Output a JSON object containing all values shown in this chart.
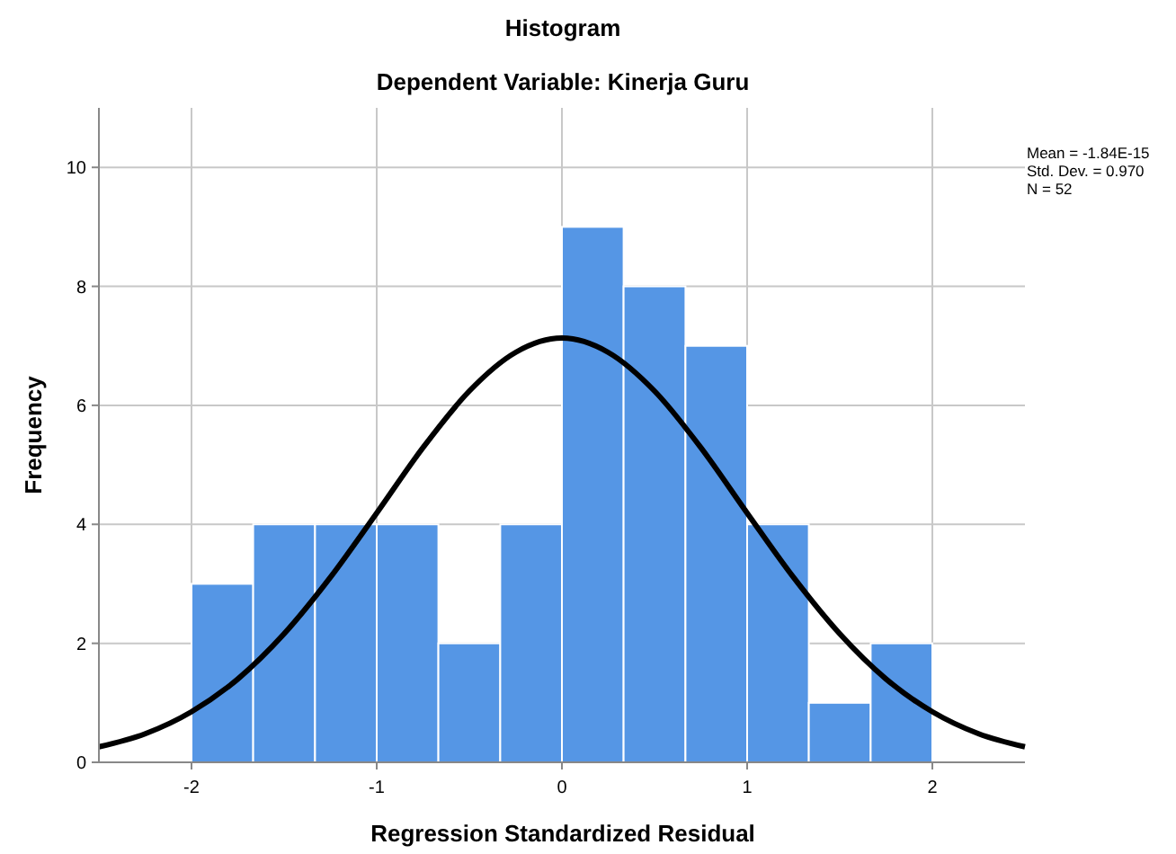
{
  "chart_data": {
    "type": "histogram",
    "title": "Histogram",
    "subtitle": "Dependent Variable: Kinerja Guru",
    "xlabel": "Regression Standardized Residual",
    "ylabel": "Frequency",
    "annotations": [
      "Mean = -1.84E-15",
      "Std. Dev. = 0.970",
      "N = 52"
    ],
    "bins": [
      -2,
      -1.667,
      -1.333,
      -1,
      -0.667,
      -0.333,
      0,
      0.333,
      0.667,
      1,
      1.333,
      1.667,
      2
    ],
    "values": [
      3,
      4,
      4,
      4,
      2,
      4,
      9,
      8,
      7,
      4,
      1,
      2
    ],
    "color": "#5596e5",
    "series": [
      {
        "type": "line",
        "color": "#000000",
        "x": [
          -2.5,
          -2.25,
          -2,
          -1.75,
          -1.5,
          -1.25,
          -1,
          -0.75,
          -0.5,
          -0.25,
          0,
          0.25,
          0.5,
          0.75,
          1,
          1.25,
          1.5,
          1.75,
          2,
          2.25,
          2.5
        ],
        "values": [
          0.26,
          0.48,
          0.85,
          1.4,
          2.16,
          3.11,
          4.19,
          5.29,
          6.24,
          6.89,
          7.13,
          6.89,
          6.24,
          5.29,
          4.19,
          3.11,
          2.16,
          1.4,
          0.85,
          0.48,
          0.26
        ]
      }
    ],
    "xlim": [
      -2.5,
      2.5
    ],
    "xticks": [
      -2,
      -1,
      0,
      1,
      2
    ],
    "ylim": [
      0,
      11
    ],
    "yticks": [
      0,
      2,
      4,
      6,
      8,
      10
    ],
    "grid": true,
    "marker": "none",
    "line_style": "solid"
  }
}
